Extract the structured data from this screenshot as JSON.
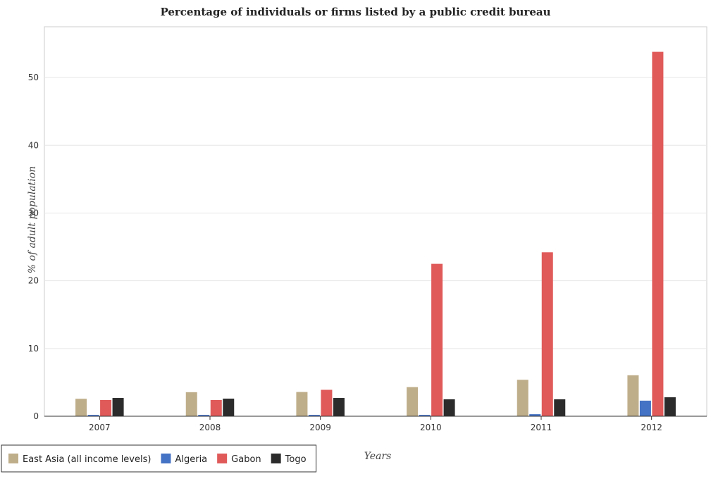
{
  "chart_data": {
    "type": "bar",
    "title": "Percentage of individuals or firms listed by a public credit bureau",
    "xlabel": "Years",
    "ylabel": "% of adult population",
    "categories": [
      "2007",
      "2008",
      "2009",
      "2010",
      "2011",
      "2012"
    ],
    "ylim": [
      0,
      57.5
    ],
    "yticks": [
      0,
      10,
      20,
      30,
      40,
      50
    ],
    "grid": true,
    "legend_position": "bottom-left",
    "series": [
      {
        "name": "East Asia (all income levels)",
        "color": "#bfae8a",
        "values": [
          2.58,
          3.55,
          3.58,
          4.3,
          5.38,
          6.05
        ]
      },
      {
        "name": "Algeria",
        "color": "#4472c4",
        "values": [
          0.2,
          0.2,
          0.2,
          0.2,
          0.3,
          2.3
        ]
      },
      {
        "name": "Gabon",
        "color": "#e05a5a",
        "values": [
          2.4,
          2.4,
          3.9,
          22.5,
          24.2,
          53.8
        ]
      },
      {
        "name": "Togo",
        "color": "#2b2b2b",
        "values": [
          2.7,
          2.6,
          2.7,
          2.5,
          2.5,
          2.8
        ]
      }
    ]
  }
}
